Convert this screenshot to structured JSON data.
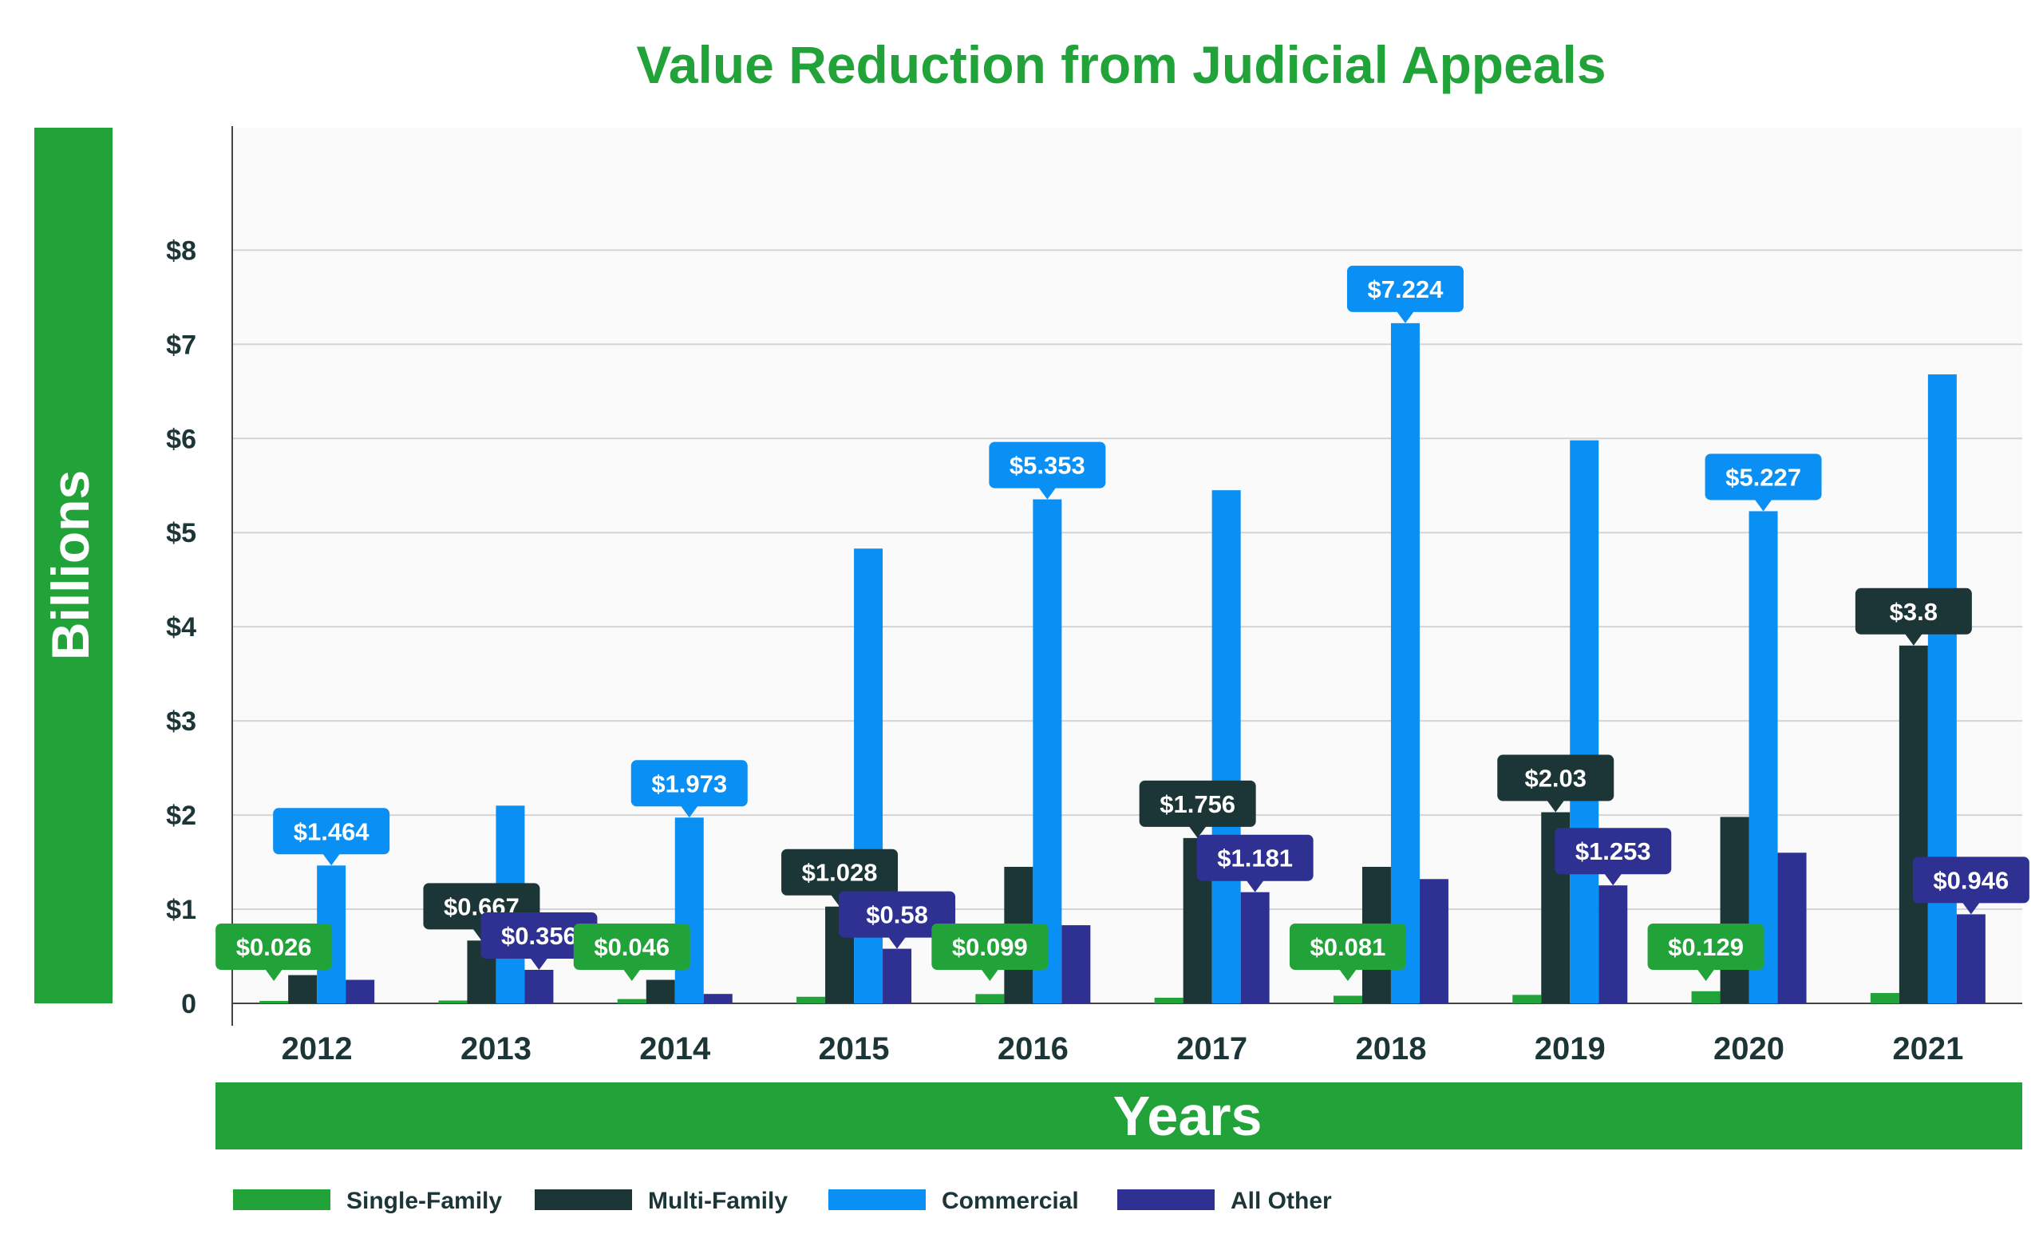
{
  "chart_data": {
    "type": "bar",
    "title": "Value Reduction from Judicial Appeals",
    "xlabel": "Years",
    "ylabel": "Billions",
    "categories": [
      "2012",
      "2013",
      "2014",
      "2015",
      "2016",
      "2017",
      "2018",
      "2019",
      "2020",
      "2021"
    ],
    "yticks": [
      "0",
      "$1",
      "$2",
      "$3",
      "$4",
      "$5",
      "$6",
      "$7",
      "$8"
    ],
    "ylim": [
      0,
      9.3
    ],
    "grid": true,
    "legend_position": "bottom-left",
    "series": [
      {
        "name": "Single-Family",
        "color": "#22a33a",
        "values": [
          0.026,
          0.03,
          0.046,
          0.07,
          0.099,
          0.06,
          0.081,
          0.09,
          0.129,
          0.11
        ],
        "labels": [
          "$0.026",
          null,
          "$0.046",
          null,
          "$0.099",
          null,
          "$0.081",
          null,
          "$0.129",
          null
        ]
      },
      {
        "name": "Multi-Family",
        "color": "#1c3536",
        "values": [
          0.3,
          0.667,
          0.25,
          1.028,
          1.45,
          1.756,
          1.45,
          2.03,
          1.98,
          3.8
        ],
        "labels": [
          null,
          "$0.667",
          null,
          "$1.028",
          null,
          "$1.756",
          null,
          "$2.03",
          null,
          "$3.8"
        ]
      },
      {
        "name": "Commercial",
        "color": "#0a90f4",
        "values": [
          1.464,
          2.1,
          1.973,
          4.83,
          5.353,
          5.45,
          7.224,
          5.98,
          5.227,
          6.68
        ],
        "labels": [
          "$1.464",
          null,
          "$1.973",
          null,
          "$5.353",
          null,
          "$7.224",
          null,
          "$5.227",
          null
        ]
      },
      {
        "name": "All Other",
        "color": "#2e3192",
        "values": [
          0.25,
          0.356,
          0.1,
          0.58,
          0.83,
          1.181,
          1.32,
          1.253,
          1.6,
          0.946
        ],
        "labels": [
          null,
          "$0.356",
          null,
          "$0.58",
          null,
          "$1.181",
          null,
          "$1.253",
          null,
          "$0.946"
        ]
      }
    ]
  },
  "colors": {
    "accent_green": "#22a33a",
    "tick_text": "#1c3536",
    "plot_background": "#fafafa",
    "gridline": "#d4d4d4"
  }
}
